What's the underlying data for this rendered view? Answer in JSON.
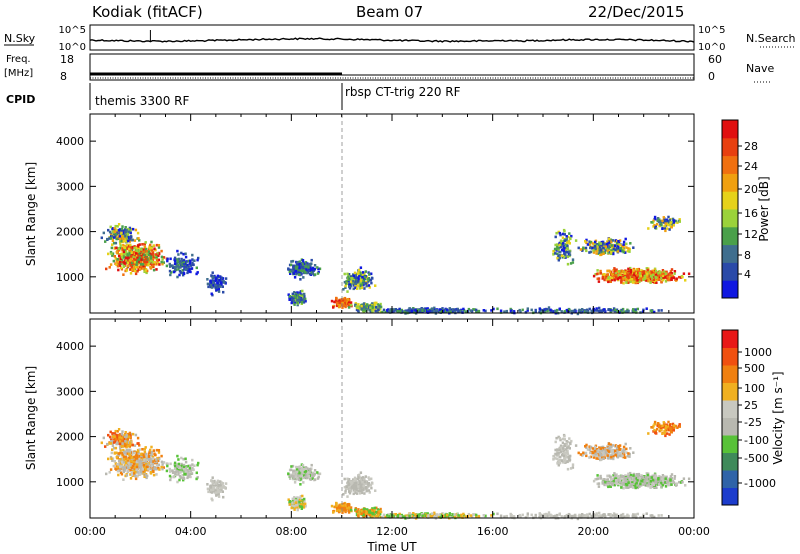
{
  "header": {
    "station": "Kodiak (fitACF)",
    "beam": "Beam 07",
    "date": "22/Dec/2015"
  },
  "top_panels": {
    "nsky_label": "N.Sky",
    "nsky_top": "10^5",
    "nsky_bottom": "10^0",
    "nsearch_label": "N.Search",
    "nsearch_top": "10^5",
    "nsearch_bottom": "10^0",
    "freq_label_1": "Freq.",
    "freq_label_2": "[MHz]",
    "freq_top": "18",
    "freq_bottom": "8",
    "nave_label": "Nave",
    "nave_top": "60",
    "nave_bottom": "0",
    "cpid_label": "CPID",
    "cpid_1": "themis 3300 RF",
    "cpid_2": "rbsp CT-trig 220 RF"
  },
  "chart_data": [
    {
      "type": "heatmap",
      "title": "",
      "ylabel": "Slant Range [km]",
      "yticks": [
        "1000",
        "2000",
        "3000",
        "4000"
      ],
      "xtick_labels": [
        "00:00",
        "04:00",
        "08:00",
        "12:00",
        "16:00",
        "20:00",
        "00:00"
      ],
      "colorbar": {
        "label": "Power [dB]",
        "ticks": [
          "4",
          "8",
          "12",
          "16",
          "20",
          "24",
          "28"
        ],
        "colors": [
          "#1018e0",
          "#2a4aa8",
          "#3f6e8e",
          "#4aa04a",
          "#9bd23a",
          "#e6d21a",
          "#f0a010",
          "#f07010",
          "#e84010",
          "#e01010"
        ]
      }
    },
    {
      "type": "heatmap",
      "title": "",
      "ylabel": "Slant Range [km]",
      "xlabel": "Time UT",
      "yticks": [
        "1000",
        "2000",
        "3000",
        "4000"
      ],
      "xtick_labels": [
        "00:00",
        "04:00",
        "08:00",
        "12:00",
        "16:00",
        "20:00",
        "00:00"
      ],
      "colorbar": {
        "label": "Velocity [m s⁻¹]",
        "ticks": [
          "1000",
          "500",
          "100",
          "25",
          "-25",
          "-100",
          "-500",
          "-1000"
        ],
        "colors": [
          "#1c3ccc",
          "#2f63a8",
          "#3f8a5a",
          "#58c238",
          "#b8b8b0",
          "#c8c8c0",
          "#f0b020",
          "#f08010",
          "#f05010",
          "#e81818"
        ]
      }
    }
  ]
}
